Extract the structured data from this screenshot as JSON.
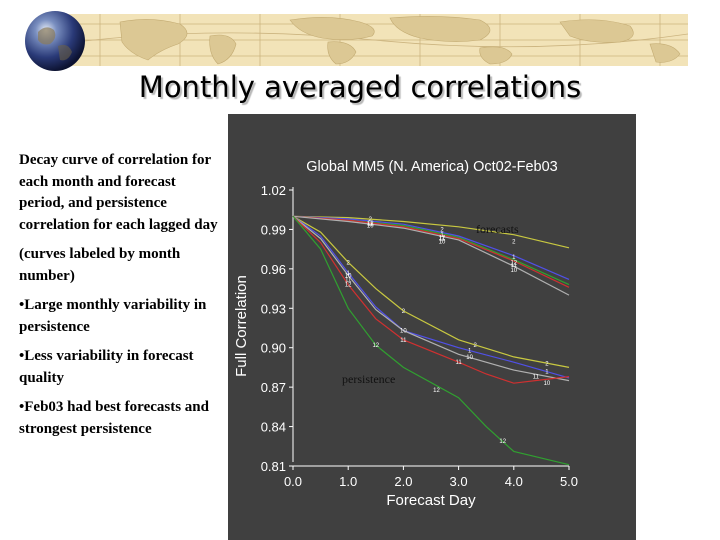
{
  "slide": {
    "title": "Monthly averaged correlations",
    "notes": [
      "Decay curve of correlation for each month and forecast period, and persistence correlation for each lagged day",
      "(curves labeled by month number)",
      "•Large monthly variability in persistence",
      "•Less variability in forecast quality",
      "•Feb03 had best forecasts and strongest persistence"
    ]
  },
  "colors": {
    "banner": "#f2e3b8",
    "chart_background": "#404040"
  },
  "chart_data": {
    "type": "line",
    "title": "Global MM5 (N. America) Oct02-Feb03",
    "xlabel": "Forecast Day",
    "ylabel": "Full Correlation",
    "xlim": [
      0,
      5
    ],
    "ylim": [
      0.81,
      1.02
    ],
    "x_ticks": [
      "0.0",
      "1.0",
      "2.0",
      "3.0",
      "4.0",
      "5.0"
    ],
    "y_ticks": [
      "0.81",
      "0.84",
      "0.87",
      "0.90",
      "0.93",
      "0.96",
      "0.99",
      "1.02"
    ],
    "annotations": {
      "forecasts": "forecasts",
      "persistence": "persistence"
    },
    "series": [
      {
        "group": "forecast",
        "label": "2",
        "color": "#c8c840",
        "points": [
          [
            0,
            1.0
          ],
          [
            1,
            0.999
          ],
          [
            2,
            0.996
          ],
          [
            3,
            0.992
          ],
          [
            4,
            0.986
          ],
          [
            5,
            0.976
          ]
        ],
        "label_points": [
          [
            1.4,
            0.998
          ],
          [
            2.7,
            0.99
          ],
          [
            4,
            0.981
          ]
        ]
      },
      {
        "group": "forecast",
        "label": "1",
        "color": "#5050e8",
        "points": [
          [
            0,
            1.0
          ],
          [
            1,
            0.998
          ],
          [
            2,
            0.994
          ],
          [
            3,
            0.985
          ],
          [
            4,
            0.97
          ],
          [
            5,
            0.952
          ]
        ],
        "label_points": [
          [
            2.7,
            0.986
          ],
          [
            4,
            0.969
          ]
        ]
      },
      {
        "group": "forecast",
        "label": "12",
        "color": "#30a030",
        "points": [
          [
            0,
            1.0
          ],
          [
            1,
            0.997
          ],
          [
            2,
            0.993
          ],
          [
            3,
            0.984
          ],
          [
            4,
            0.967
          ],
          [
            5,
            0.948
          ]
        ],
        "label_points": [
          [
            1.4,
            0.995
          ],
          [
            2.7,
            0.984
          ],
          [
            4,
            0.965
          ]
        ]
      },
      {
        "group": "forecast",
        "label": "11",
        "color": "#d03030",
        "points": [
          [
            0,
            1.0
          ],
          [
            1,
            0.997
          ],
          [
            2,
            0.992
          ],
          [
            3,
            0.983
          ],
          [
            4,
            0.966
          ],
          [
            5,
            0.946
          ]
        ],
        "label_points": [
          [
            1.4,
            0.994
          ],
          [
            2.7,
            0.983
          ],
          [
            4,
            0.963
          ]
        ]
      },
      {
        "group": "forecast",
        "label": "10",
        "color": "#b0b0b0",
        "points": [
          [
            0,
            1.0
          ],
          [
            1,
            0.996
          ],
          [
            2,
            0.991
          ],
          [
            3,
            0.982
          ],
          [
            4,
            0.962
          ],
          [
            5,
            0.94
          ]
        ],
        "label_points": [
          [
            1.4,
            0.993
          ],
          [
            2.7,
            0.981
          ],
          [
            4,
            0.959
          ]
        ]
      },
      {
        "group": "persistence",
        "label": "2",
        "color": "#c8c840",
        "points": [
          [
            0,
            1.0
          ],
          [
            0.5,
            0.988
          ],
          [
            1,
            0.965
          ],
          [
            1.5,
            0.945
          ],
          [
            2,
            0.928
          ],
          [
            3,
            0.906
          ],
          [
            4,
            0.893
          ],
          [
            5,
            0.885
          ]
        ],
        "label_points": [
          [
            1,
            0.965
          ],
          [
            2,
            0.928
          ],
          [
            3.3,
            0.902
          ],
          [
            4.6,
            0.888
          ]
        ]
      },
      {
        "group": "persistence",
        "label": "1",
        "color": "#5050e8",
        "points": [
          [
            0,
            1.0
          ],
          [
            0.5,
            0.985
          ],
          [
            1,
            0.957
          ],
          [
            1.5,
            0.931
          ],
          [
            2,
            0.913
          ],
          [
            3,
            0.9
          ],
          [
            4,
            0.889
          ],
          [
            5,
            0.877
          ]
        ],
        "label_points": [
          [
            1,
            0.957
          ],
          [
            3.2,
            0.898
          ],
          [
            4.6,
            0.882
          ]
        ]
      },
      {
        "group": "persistence",
        "label": "10",
        "color": "#b0b0b0",
        "points": [
          [
            0,
            1.0
          ],
          [
            0.5,
            0.983
          ],
          [
            1,
            0.955
          ],
          [
            1.5,
            0.929
          ],
          [
            2,
            0.913
          ],
          [
            3,
            0.895
          ],
          [
            4,
            0.883
          ],
          [
            5,
            0.875
          ]
        ],
        "label_points": [
          [
            1,
            0.955
          ],
          [
            2,
            0.913
          ],
          [
            3.2,
            0.893
          ],
          [
            4.6,
            0.873
          ]
        ]
      },
      {
        "group": "persistence",
        "label": "11",
        "color": "#d03030",
        "points": [
          [
            0,
            1.0
          ],
          [
            0.5,
            0.98
          ],
          [
            1,
            0.948
          ],
          [
            1.5,
            0.922
          ],
          [
            2,
            0.906
          ],
          [
            3,
            0.889
          ],
          [
            3.5,
            0.88
          ],
          [
            4,
            0.873
          ],
          [
            5,
            0.878
          ]
        ],
        "label_points": [
          [
            1,
            0.952
          ],
          [
            2,
            0.906
          ],
          [
            3,
            0.889
          ],
          [
            4.4,
            0.878
          ]
        ]
      },
      {
        "group": "persistence",
        "label": "12",
        "color": "#30a030",
        "points": [
          [
            0,
            1.0
          ],
          [
            0.5,
            0.975
          ],
          [
            1,
            0.93
          ],
          [
            1.5,
            0.902
          ],
          [
            2,
            0.885
          ],
          [
            3,
            0.862
          ],
          [
            3.5,
            0.84
          ],
          [
            4,
            0.821
          ],
          [
            5,
            0.811
          ]
        ],
        "label_points": [
          [
            1,
            0.948
          ],
          [
            1.5,
            0.902
          ],
          [
            2.6,
            0.868
          ],
          [
            3.8,
            0.829
          ]
        ]
      }
    ]
  }
}
